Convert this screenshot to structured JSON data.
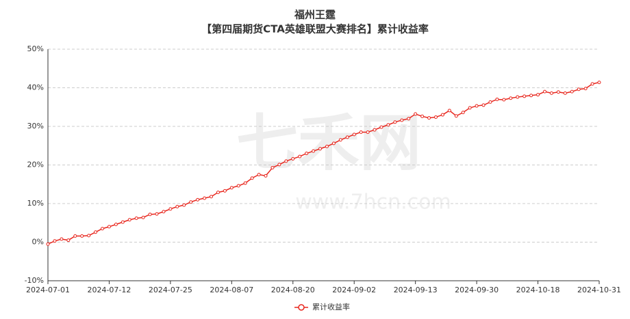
{
  "chart_data": {
    "type": "line",
    "title": "福州王霆",
    "subtitle": "【第四届期货CTA英雄联盟大赛排名】累计收益率",
    "watermark": "七禾网",
    "watermark_url": "www.7hcn.com",
    "categories": [
      "2024-07-01",
      null,
      null,
      null,
      null,
      null,
      null,
      null,
      null,
      "2024-07-12",
      null,
      null,
      null,
      null,
      null,
      null,
      null,
      null,
      "2024-07-25",
      null,
      null,
      null,
      null,
      null,
      null,
      null,
      null,
      "2024-08-07",
      null,
      null,
      null,
      null,
      null,
      null,
      null,
      null,
      "2024-08-20",
      null,
      null,
      null,
      null,
      null,
      null,
      null,
      null,
      "2024-09-02",
      null,
      null,
      null,
      null,
      null,
      null,
      null,
      null,
      "2024-09-13",
      null,
      null,
      null,
      null,
      null,
      null,
      null,
      null,
      "2024-09-30",
      null,
      null,
      null,
      null,
      null,
      null,
      null,
      null,
      "2024-10-18",
      null,
      null,
      null,
      null,
      null,
      null,
      null,
      null,
      "2024-10-31"
    ],
    "series": [
      {
        "name": "累计收益率",
        "color": "#e8251c",
        "values": [
          -0.5,
          0.3,
          0.8,
          0.5,
          1.6,
          1.6,
          1.7,
          2.6,
          3.5,
          4.0,
          4.6,
          5.2,
          5.8,
          6.2,
          6.4,
          7.2,
          7.3,
          7.9,
          8.6,
          9.2,
          9.6,
          10.4,
          11.0,
          11.4,
          11.8,
          12.9,
          13.3,
          14.1,
          14.6,
          15.3,
          16.6,
          17.5,
          17.2,
          19.3,
          20.1,
          21.0,
          21.6,
          22.2,
          23.0,
          23.6,
          24.2,
          24.8,
          25.6,
          26.5,
          27.2,
          27.9,
          28.5,
          28.5,
          29.1,
          29.8,
          30.4,
          31.1,
          31.6,
          32.0,
          33.2,
          32.6,
          32.2,
          32.4,
          33.0,
          34.1,
          32.7,
          33.6,
          34.8,
          35.3,
          35.5,
          36.3,
          37.0,
          36.9,
          37.3,
          37.6,
          37.8,
          38.0,
          38.2,
          39.0,
          38.6,
          38.9,
          38.6,
          39.0,
          39.6,
          39.8,
          41.0,
          41.4
        ]
      }
    ],
    "ylim": [
      -10,
      50
    ],
    "yticks": [
      {
        "value": -10,
        "label": "-10%"
      },
      {
        "value": 0,
        "label": "0%"
      },
      {
        "value": 10,
        "label": "10%"
      },
      {
        "value": 20,
        "label": "20%"
      },
      {
        "value": 30,
        "label": "30%"
      },
      {
        "value": 40,
        "label": "40%"
      },
      {
        "value": 50,
        "label": "50%"
      }
    ],
    "grid": true
  }
}
